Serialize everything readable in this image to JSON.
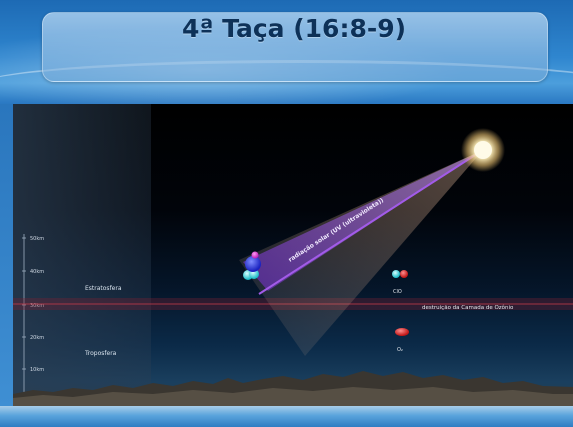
{
  "slide": {
    "title": "4ª Taça (16:8-9)"
  },
  "diagram": {
    "altitude_scale": [
      "50km",
      "40km",
      "30km",
      "20km",
      "10km",
      "0km"
    ],
    "layers": {
      "stratosphere": "Estratosfera",
      "troposphere": "Troposfera"
    },
    "beam_label": "radiação solar (UV (ultravioleta))",
    "destruction_label": "destruição da Camada de Ozônio",
    "molecules": {
      "clo": "ClO",
      "o2": "O₂"
    },
    "colors": {
      "ozone_line": "#c23a4a",
      "beam": "#8d3be0",
      "sun": "#fff6c8"
    }
  }
}
